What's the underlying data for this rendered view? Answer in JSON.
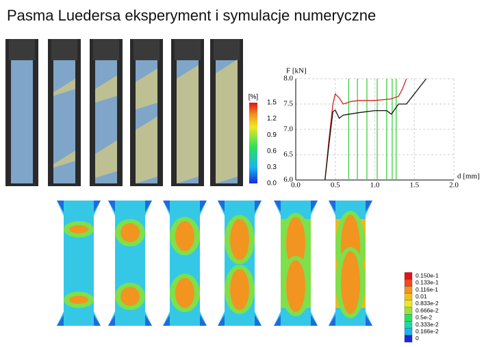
{
  "title": "Pasma Luedersa eksperyment i symulacje numeryczne",
  "strain_colorbar": {
    "title": "[%]",
    "labels": [
      "1.5",
      "1.2",
      "0.9",
      "0.6",
      "0.3",
      "0.0"
    ]
  },
  "chart_data": {
    "type": "line",
    "x_label": "d [mm]",
    "y_label": "F [kN]",
    "xlim": [
      0,
      2
    ],
    "ylim": [
      6,
      8
    ],
    "xticks": [
      {
        "value": 0,
        "label": "0.0"
      },
      {
        "value": 0.5,
        "label": "0.5"
      },
      {
        "value": 1,
        "label": "1.0"
      },
      {
        "value": 1.5,
        "label": "1.5"
      },
      {
        "value": 2,
        "label": "2.0"
      }
    ],
    "yticks": [
      {
        "value": 6,
        "label": "6.0"
      },
      {
        "value": 6.5,
        "label": "6.5"
      },
      {
        "value": 7,
        "label": "7.0"
      },
      {
        "value": 7.5,
        "label": "7.5"
      },
      {
        "value": 8,
        "label": "8.0"
      }
    ],
    "grid": true,
    "series": [
      {
        "color": "#d42020",
        "x": [
          0.37,
          0.42,
          0.47,
          0.5,
          0.55,
          0.6,
          0.7,
          0.8,
          1.0,
          1.2,
          1.3,
          1.35,
          1.4
        ],
        "values": [
          6.0,
          6.8,
          7.5,
          7.7,
          7.62,
          7.5,
          7.55,
          7.57,
          7.57,
          7.6,
          7.65,
          7.8,
          8.0
        ]
      },
      {
        "color": "#111111",
        "x": [
          0.37,
          0.42,
          0.47,
          0.5,
          0.55,
          0.6,
          0.8,
          1.0,
          1.15,
          1.21,
          1.3,
          1.4,
          1.5,
          1.65
        ],
        "values": [
          6.0,
          6.7,
          7.35,
          7.38,
          7.22,
          7.28,
          7.33,
          7.37,
          7.37,
          7.3,
          7.5,
          7.5,
          7.7,
          8.0
        ]
      }
    ],
    "markers": [
      0.67,
      0.78,
      0.9,
      1.03,
      1.15,
      1.22,
      1.27
    ],
    "marker_color": "#3ccf3c"
  },
  "stress_colorbar": {
    "labels": [
      "0.150e-1",
      "0.133e-1",
      "0.116e-1",
      "0.01",
      "0.833e-2",
      "0.666e-2",
      "0.5e-2",
      "0.333e-2",
      "0.166e-2",
      "0"
    ]
  }
}
